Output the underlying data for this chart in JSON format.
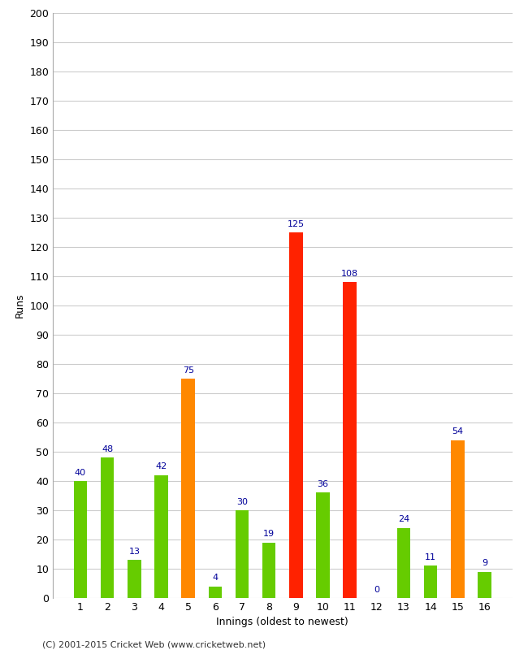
{
  "title": "",
  "xlabel": "Innings (oldest to newest)",
  "ylabel": "Runs",
  "categories": [
    1,
    2,
    3,
    4,
    5,
    6,
    7,
    8,
    9,
    10,
    11,
    12,
    13,
    14,
    15,
    16
  ],
  "values": [
    40,
    48,
    13,
    42,
    75,
    4,
    30,
    19,
    125,
    36,
    108,
    0,
    24,
    11,
    54,
    9
  ],
  "colors": [
    "#66cc00",
    "#66cc00",
    "#66cc00",
    "#66cc00",
    "#ff8800",
    "#66cc00",
    "#66cc00",
    "#66cc00",
    "#ff2200",
    "#66cc00",
    "#ff2200",
    "#66cc00",
    "#66cc00",
    "#66cc00",
    "#ff8800",
    "#66cc00"
  ],
  "ylim": [
    0,
    200
  ],
  "yticks": [
    0,
    10,
    20,
    30,
    40,
    50,
    60,
    70,
    80,
    90,
    100,
    110,
    120,
    130,
    140,
    150,
    160,
    170,
    180,
    190,
    200
  ],
  "label_color": "#000099",
  "footer": "(C) 2001-2015 Cricket Web (www.cricketweb.net)",
  "background_color": "#ffffff",
  "grid_color": "#cccccc",
  "bar_width": 0.5
}
